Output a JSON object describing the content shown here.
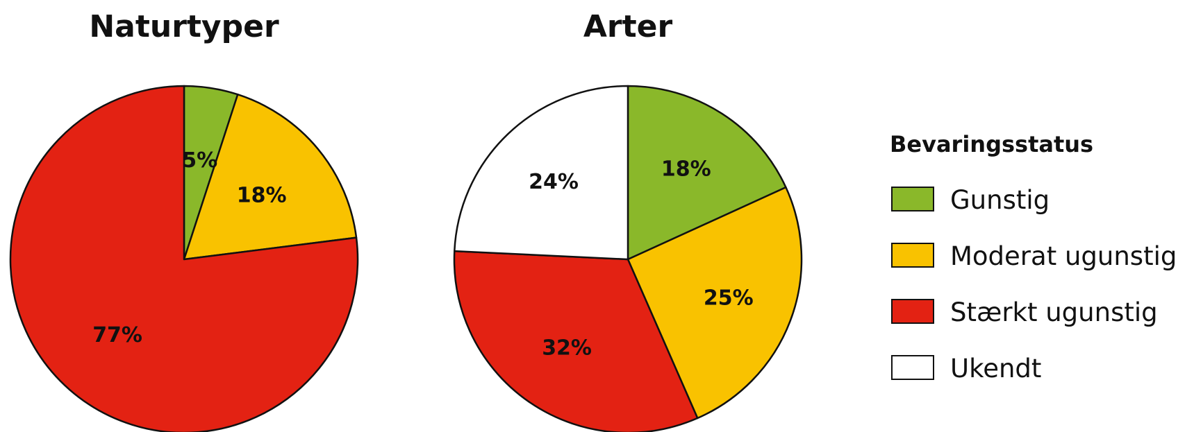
{
  "chart_data": [
    {
      "type": "pie",
      "title": "Naturtyper",
      "slices": [
        {
          "category": "Gunstig",
          "value": 5,
          "label": "5%"
        },
        {
          "category": "Moderat ugunstig",
          "value": 18,
          "label": "18%"
        },
        {
          "category": "Stærkt ugunstig",
          "value": 77,
          "label": "77%"
        }
      ]
    },
    {
      "type": "pie",
      "title": "Arter",
      "slices": [
        {
          "category": "Gunstig",
          "value": 18,
          "label": "18%"
        },
        {
          "category": "Moderat ugunstig",
          "value": 25,
          "label": "25%"
        },
        {
          "category": "Stærkt ugunstig",
          "value": 32,
          "label": "32%"
        },
        {
          "category": "Ukendt",
          "value": 24,
          "label": "24%"
        }
      ]
    }
  ],
  "legend": {
    "title": "Bevaringsstatus",
    "items": [
      {
        "category": "Gunstig",
        "label": "Gunstig",
        "color": "#8ab82a"
      },
      {
        "category": "Moderat ugunstig",
        "label": "Moderat ugunstig",
        "color": "#f9c200"
      },
      {
        "category": "Stærkt ugunstig",
        "label": "Stærkt ugunstig",
        "color": "#e32213"
      },
      {
        "category": "Ukendt",
        "label": "Ukendt",
        "color": "#ffffff"
      }
    ]
  }
}
